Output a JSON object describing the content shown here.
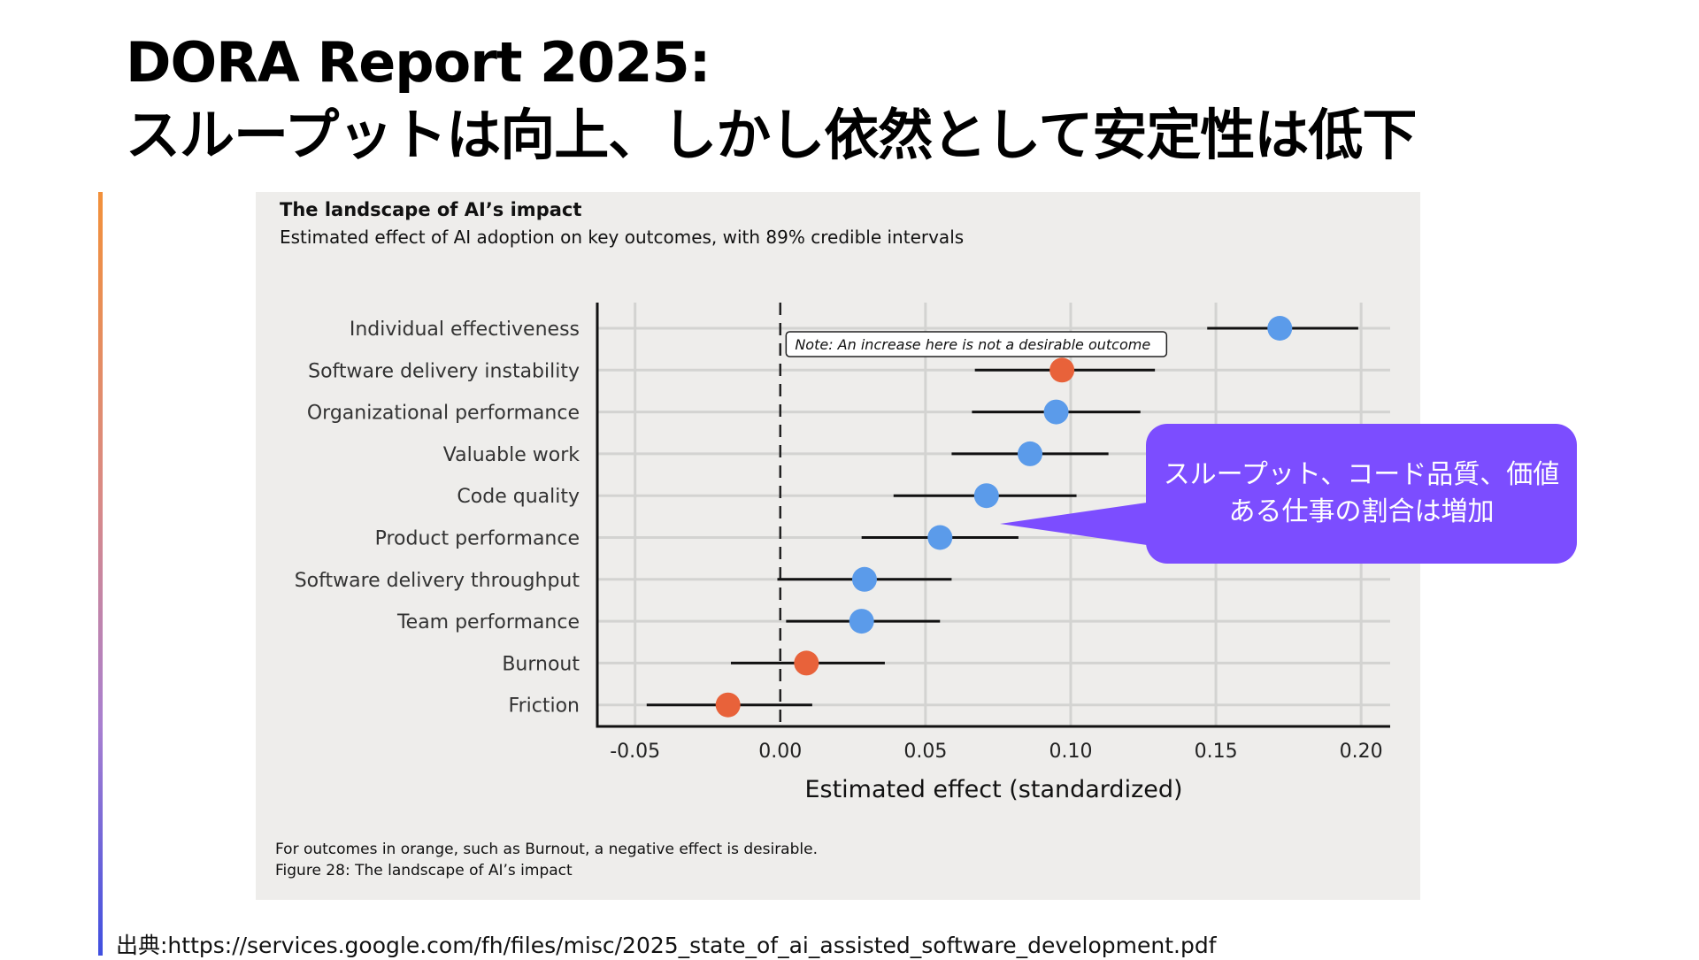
{
  "slide": {
    "title_line1": "DORA Report 2025:",
    "title_line2": "スループットは向上、しかし依然として安定性は低下",
    "source": "出典:https://services.google.com/fh/files/misc/2025_state_of_ai_assisted_software_development.pdf"
  },
  "callout": {
    "text": "スループット、コード品質、価値ある仕事の割合は増加"
  },
  "colors": {
    "blue": "#5b9bea",
    "orange": "#e8623a",
    "callout": "#7c4dff",
    "panel": "#eeedeb"
  },
  "chart_data": {
    "type": "scatter",
    "title": "The landscape of AI’s impact",
    "subtitle": "Estimated effect of AI adoption on key outcomes, with 89% credible intervals",
    "xlabel": "Estimated effect (standardized)",
    "ylabel": "",
    "xlim": [
      -0.063,
      0.21
    ],
    "xticks": [
      -0.05,
      0.0,
      0.05,
      0.1,
      0.15,
      0.2
    ],
    "xtick_labels": [
      "-0.05",
      "0.00",
      "0.05",
      "0.10",
      "0.15",
      "0.20"
    ],
    "grid": true,
    "reference_line": 0.0,
    "note": "Note: An increase here is not a desirable outcome",
    "footnote": "For outcomes in orange, such as Burnout, a negative effect is desirable.",
    "caption": "Figure 28: The landscape of AI’s impact",
    "series": [
      {
        "name": "Individual effectiveness",
        "estimate": 0.172,
        "low": 0.147,
        "high": 0.199,
        "color": "blue"
      },
      {
        "name": "Software delivery instability",
        "estimate": 0.097,
        "low": 0.067,
        "high": 0.129,
        "color": "orange"
      },
      {
        "name": "Organizational performance",
        "estimate": 0.095,
        "low": 0.066,
        "high": 0.124,
        "color": "blue"
      },
      {
        "name": "Valuable work",
        "estimate": 0.086,
        "low": 0.059,
        "high": 0.113,
        "color": "blue"
      },
      {
        "name": "Code quality",
        "estimate": 0.071,
        "low": 0.039,
        "high": 0.102,
        "color": "blue"
      },
      {
        "name": "Product performance",
        "estimate": 0.055,
        "low": 0.028,
        "high": 0.082,
        "color": "blue"
      },
      {
        "name": "Software delivery throughput",
        "estimate": 0.029,
        "low": -0.001,
        "high": 0.059,
        "color": "blue"
      },
      {
        "name": "Team performance",
        "estimate": 0.028,
        "low": 0.002,
        "high": 0.055,
        "color": "blue"
      },
      {
        "name": "Burnout",
        "estimate": 0.009,
        "low": -0.017,
        "high": 0.036,
        "color": "orange"
      },
      {
        "name": "Friction",
        "estimate": -0.018,
        "low": -0.046,
        "high": 0.011,
        "color": "orange"
      }
    ]
  }
}
